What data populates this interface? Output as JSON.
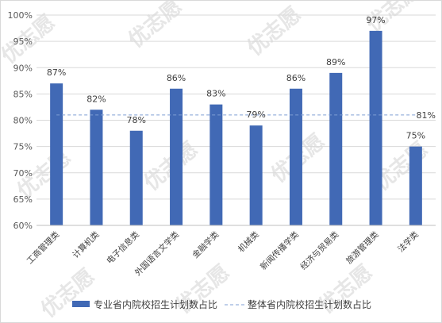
{
  "chart_data": {
    "type": "bar",
    "categories": [
      "工商管理类",
      "计算机类",
      "电子信息类",
      "外国语言文学类",
      "金融学类",
      "机械类",
      "新闻传播学类",
      "经济与贸易类",
      "旅游管理类",
      "法学类"
    ],
    "series": [
      {
        "name": "专业省内院校招生计划数占比",
        "values": [
          87,
          82,
          78,
          86,
          83,
          79,
          86,
          89,
          97,
          75
        ],
        "labels": [
          "87%",
          "82%",
          "78%",
          "86%",
          "83%",
          "79%",
          "86%",
          "89%",
          "97%",
          "75%"
        ],
        "color": "#4169b5"
      }
    ],
    "reference_line": {
      "name": "整体省内院校招生计划数占比",
      "value": 81,
      "label": "81%",
      "color": "#7f9fd4",
      "style": "dashed"
    },
    "yticks": [
      "60%",
      "65%",
      "70%",
      "75%",
      "80%",
      "85%",
      "90%",
      "95%",
      "100%"
    ],
    "ylim": [
      60,
      100
    ],
    "grid": true,
    "legend": "bottom",
    "watermark": "优志愿"
  }
}
